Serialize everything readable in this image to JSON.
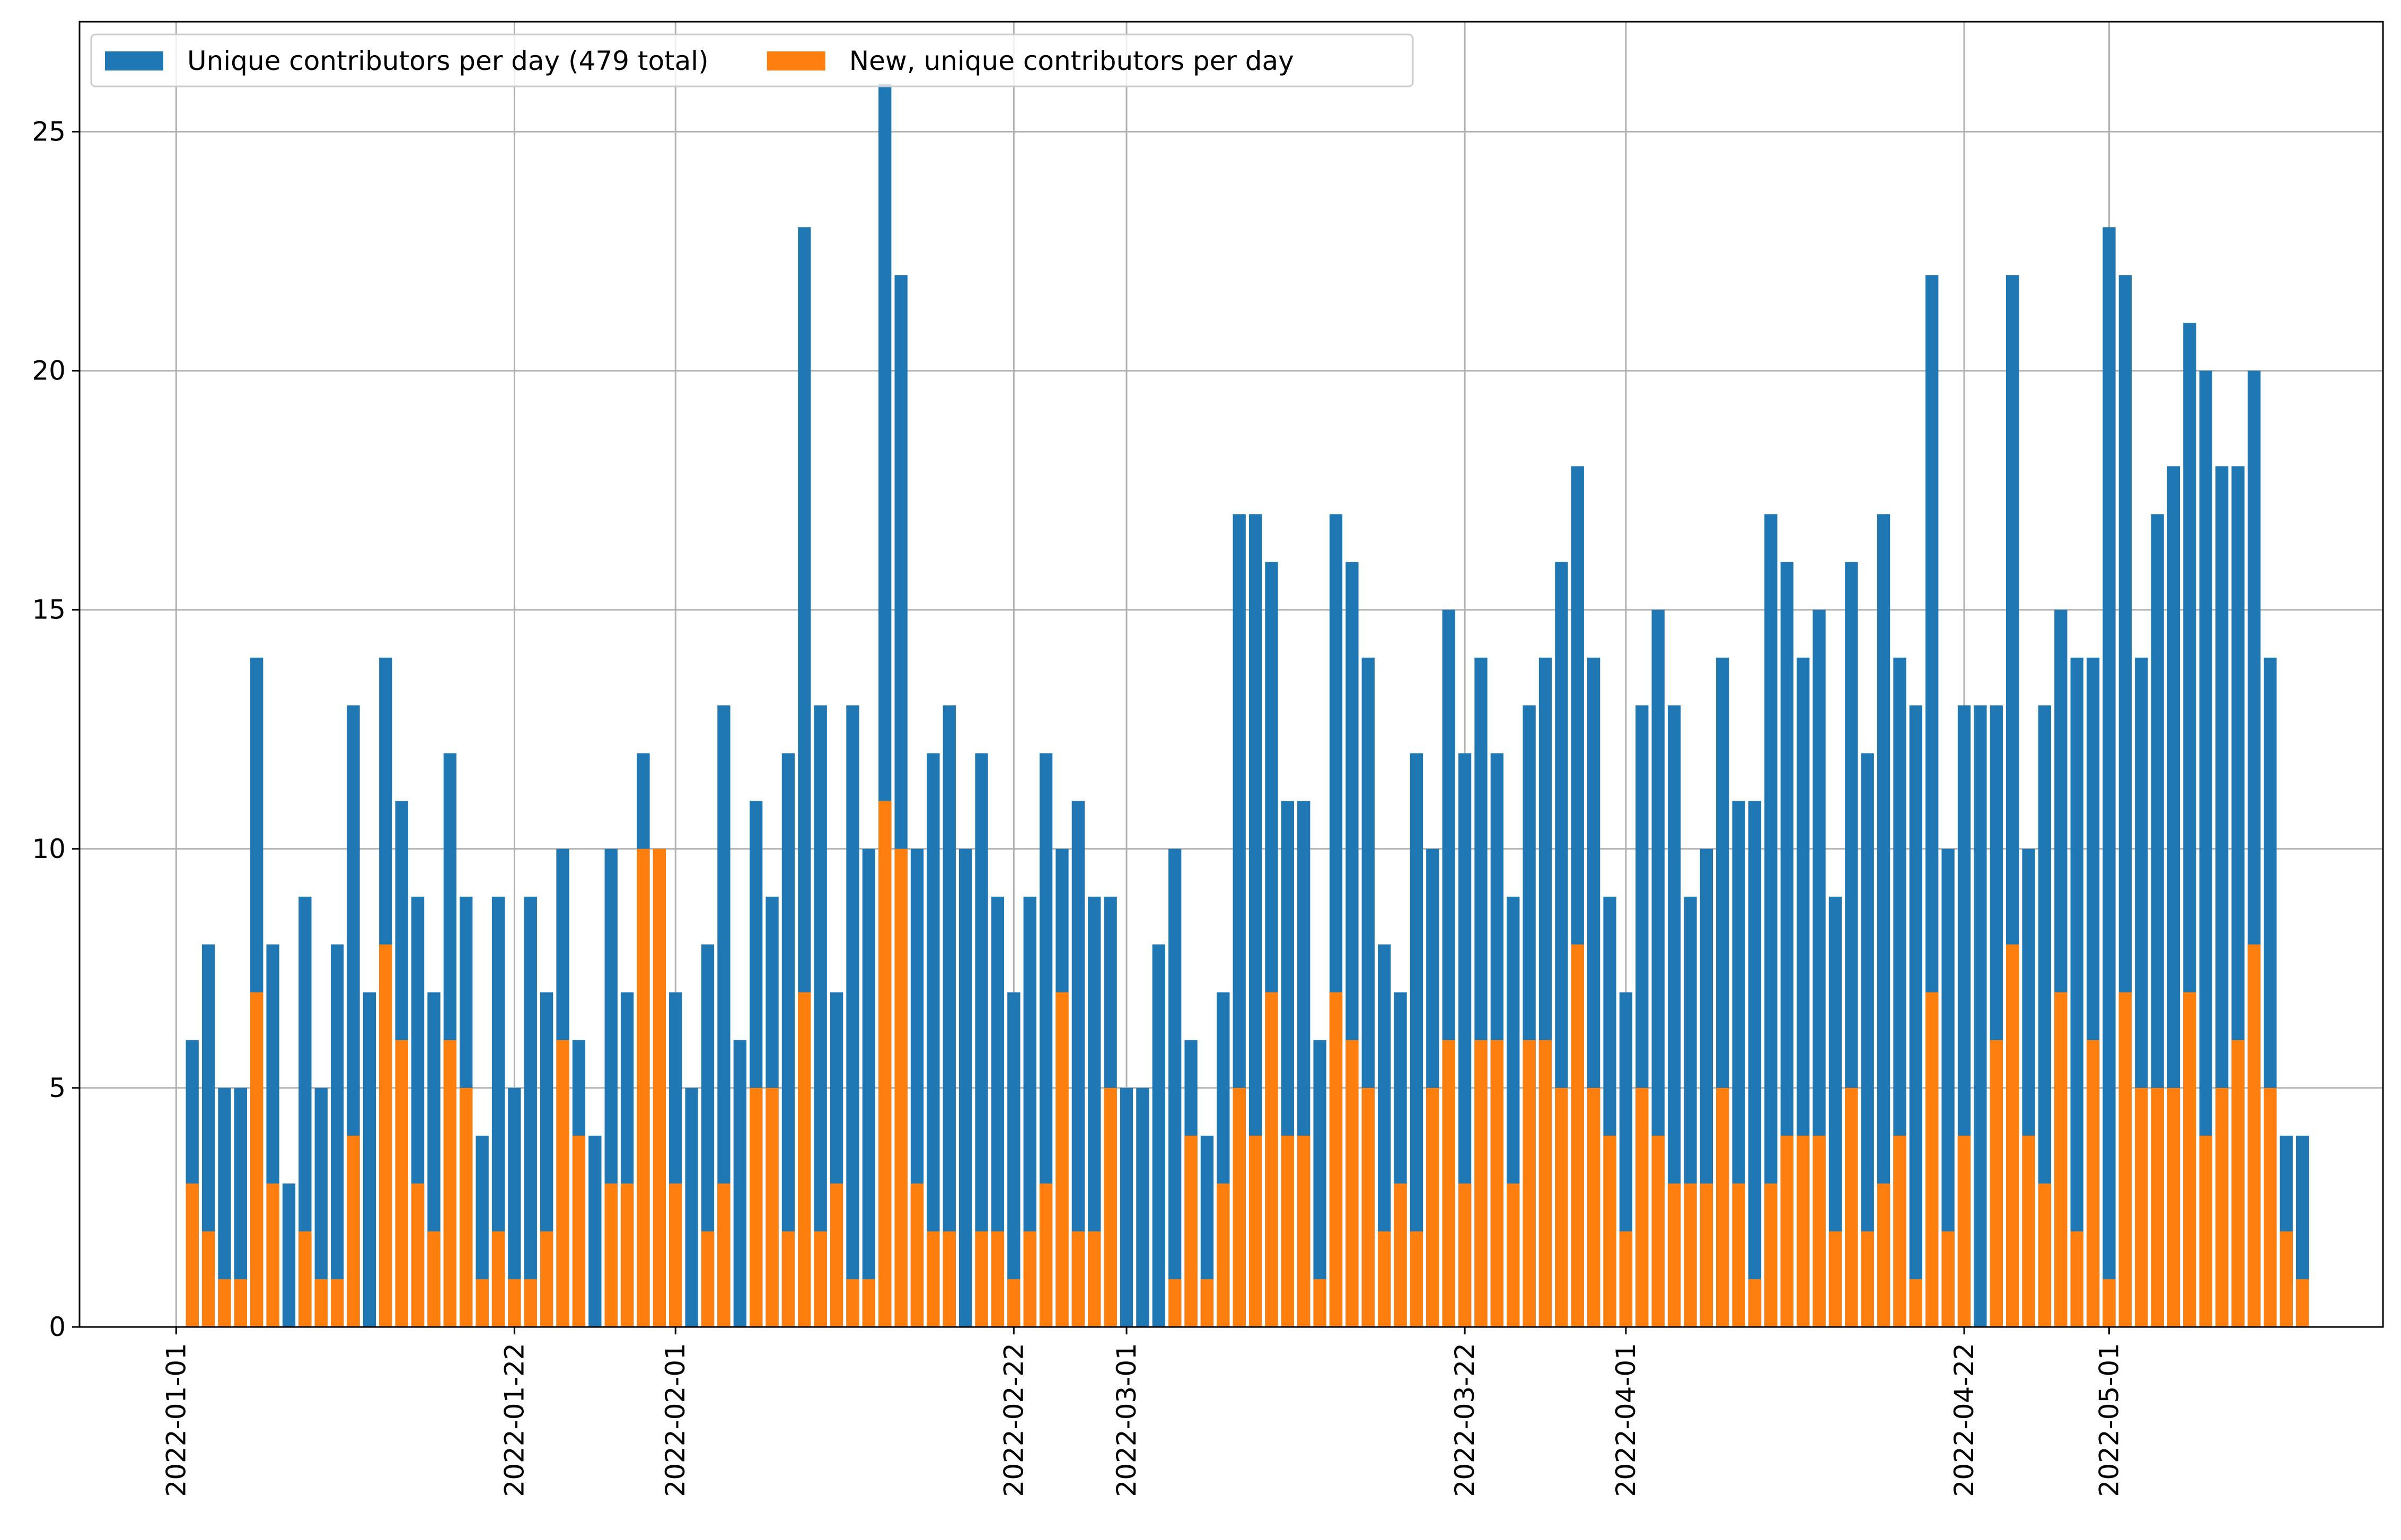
{
  "chart_data": {
    "type": "bar",
    "x_type": "date",
    "x_start": "2022-01-02",
    "x_end": "2022-05-13",
    "xlim": [
      "2021-12-26",
      "2022-05-18"
    ],
    "xticks": [
      "2022-01-01",
      "2022-01-22",
      "2022-02-01",
      "2022-02-22",
      "2022-03-01",
      "2022-03-22",
      "2022-04-01",
      "2022-04-22",
      "2022-05-01"
    ],
    "ylim": [
      0,
      27.3
    ],
    "yticks": [
      0,
      5,
      10,
      15,
      20,
      25
    ],
    "grid": true,
    "legend_position": "top-left",
    "series": [
      {
        "name": "Unique contributors per day (479 total)",
        "color": "#1f77b4",
        "values": [
          6,
          8,
          5,
          5,
          14,
          8,
          3,
          9,
          5,
          8,
          13,
          7,
          14,
          11,
          9,
          7,
          12,
          9,
          4,
          9,
          5,
          9,
          7,
          10,
          6,
          4,
          10,
          7,
          12,
          10,
          7,
          5,
          8,
          13,
          6,
          11,
          9,
          12,
          23,
          13,
          7,
          13,
          10,
          26,
          22,
          10,
          12,
          13,
          10,
          12,
          9,
          7,
          9,
          12,
          10,
          11,
          9,
          9,
          5,
          5,
          8,
          10,
          6,
          4,
          7,
          17,
          17,
          16,
          11,
          11,
          6,
          17,
          16,
          14,
          8,
          7,
          12,
          10,
          15,
          12,
          14,
          12,
          9,
          13,
          14,
          16,
          18,
          14,
          9,
          7,
          13,
          15,
          13,
          9,
          10,
          14,
          11,
          11,
          17,
          16,
          14,
          15,
          9,
          16,
          12,
          17,
          14,
          13,
          22,
          10,
          13,
          13,
          13,
          22,
          10,
          13,
          15,
          14,
          14,
          23,
          22,
          14,
          17,
          18,
          21,
          20,
          18,
          18,
          20,
          14,
          4,
          4
        ]
      },
      {
        "name": "New, unique contributors per day",
        "color": "#ff7f0e",
        "values": [
          3,
          2,
          1,
          1,
          7,
          3,
          0,
          2,
          1,
          1,
          4,
          0,
          8,
          6,
          3,
          2,
          6,
          5,
          1,
          2,
          1,
          1,
          2,
          6,
          4,
          0,
          3,
          3,
          10,
          10,
          3,
          0,
          2,
          3,
          0,
          5,
          5,
          2,
          7,
          2,
          3,
          1,
          1,
          11,
          10,
          3,
          2,
          2,
          0,
          2,
          2,
          1,
          2,
          3,
          7,
          2,
          2,
          5,
          0,
          0,
          0,
          1,
          4,
          1,
          3,
          5,
          4,
          7,
          4,
          4,
          1,
          7,
          6,
          5,
          2,
          3,
          2,
          5,
          6,
          3,
          6,
          6,
          3,
          6,
          6,
          5,
          8,
          5,
          4,
          2,
          5,
          4,
          3,
          3,
          3,
          5,
          3,
          1,
          3,
          4,
          4,
          4,
          2,
          5,
          2,
          3,
          4,
          1,
          7,
          2,
          4,
          0,
          6,
          8,
          4,
          3,
          7,
          2,
          6,
          1,
          7,
          5,
          5,
          5,
          7,
          4,
          5,
          6,
          8,
          5,
          2,
          1
        ]
      }
    ]
  }
}
